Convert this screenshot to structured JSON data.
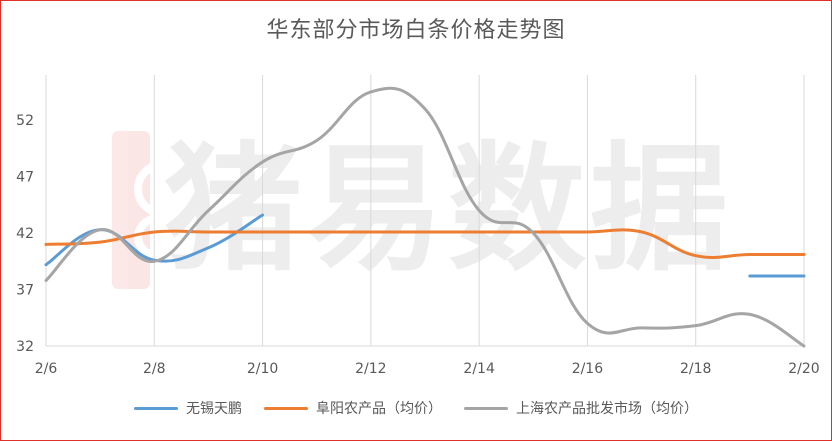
{
  "chart_data": {
    "type": "line",
    "title": "华东部分市场白条价格走势图",
    "watermark": "猪易数据",
    "x_ticks": [
      "2/6",
      "2/8",
      "2/10",
      "2/12",
      "2/14",
      "2/16",
      "2/18",
      "2/20"
    ],
    "y_ticks": [
      32,
      37,
      42,
      47,
      52
    ],
    "ylim": [
      32,
      56
    ],
    "grid": "vertical",
    "legend_position": "bottom",
    "series": [
      {
        "name": "无锡天鹏",
        "color": "#5b9bd5",
        "points": [
          [
            "2/6",
            39.2
          ],
          [
            "2/7",
            42.3
          ],
          [
            "2/8",
            39.6
          ],
          [
            "2/9",
            40.7
          ],
          [
            "2/10",
            43.6
          ],
          [
            "2/19",
            38.2
          ],
          [
            "2/20",
            38.2
          ]
        ],
        "segments": [
          [
            0,
            4
          ],
          [
            5,
            6
          ]
        ]
      },
      {
        "name": "阜阳农产品（均价）",
        "color": "#ed7d31",
        "points": [
          [
            "2/6",
            41
          ],
          [
            "2/7",
            41.2
          ],
          [
            "2/8",
            42.1
          ],
          [
            "2/9",
            42.1
          ],
          [
            "2/10",
            42.1
          ],
          [
            "2/11",
            42.1
          ],
          [
            "2/12",
            42.1
          ],
          [
            "2/13",
            42.1
          ],
          [
            "2/14",
            42.1
          ],
          [
            "2/15",
            42.1
          ],
          [
            "2/16",
            42.1
          ],
          [
            "2/17",
            42.1
          ],
          [
            "2/18",
            40
          ],
          [
            "2/19",
            40.1
          ],
          [
            "2/20",
            40.1
          ]
        ],
        "segments": [
          [
            0,
            14
          ]
        ]
      },
      {
        "name": "上海农产品批发市场（均价）",
        "color": "#a5a5a5",
        "points": [
          [
            "2/6",
            37.8
          ],
          [
            "2/7",
            42.3
          ],
          [
            "2/8",
            39.5
          ],
          [
            "2/9",
            44
          ],
          [
            "2/10",
            48.3
          ],
          [
            "2/11",
            50.2
          ],
          [
            "2/12",
            54.5
          ],
          [
            "2/13",
            53
          ],
          [
            "2/14",
            44
          ],
          [
            "2/15",
            42
          ],
          [
            "2/16",
            34
          ],
          [
            "2/17",
            33.6
          ],
          [
            "2/18",
            33.8
          ],
          [
            "2/19",
            34.8
          ],
          [
            "2/20",
            32
          ]
        ],
        "segments": [
          [
            0,
            14
          ]
        ]
      }
    ]
  }
}
